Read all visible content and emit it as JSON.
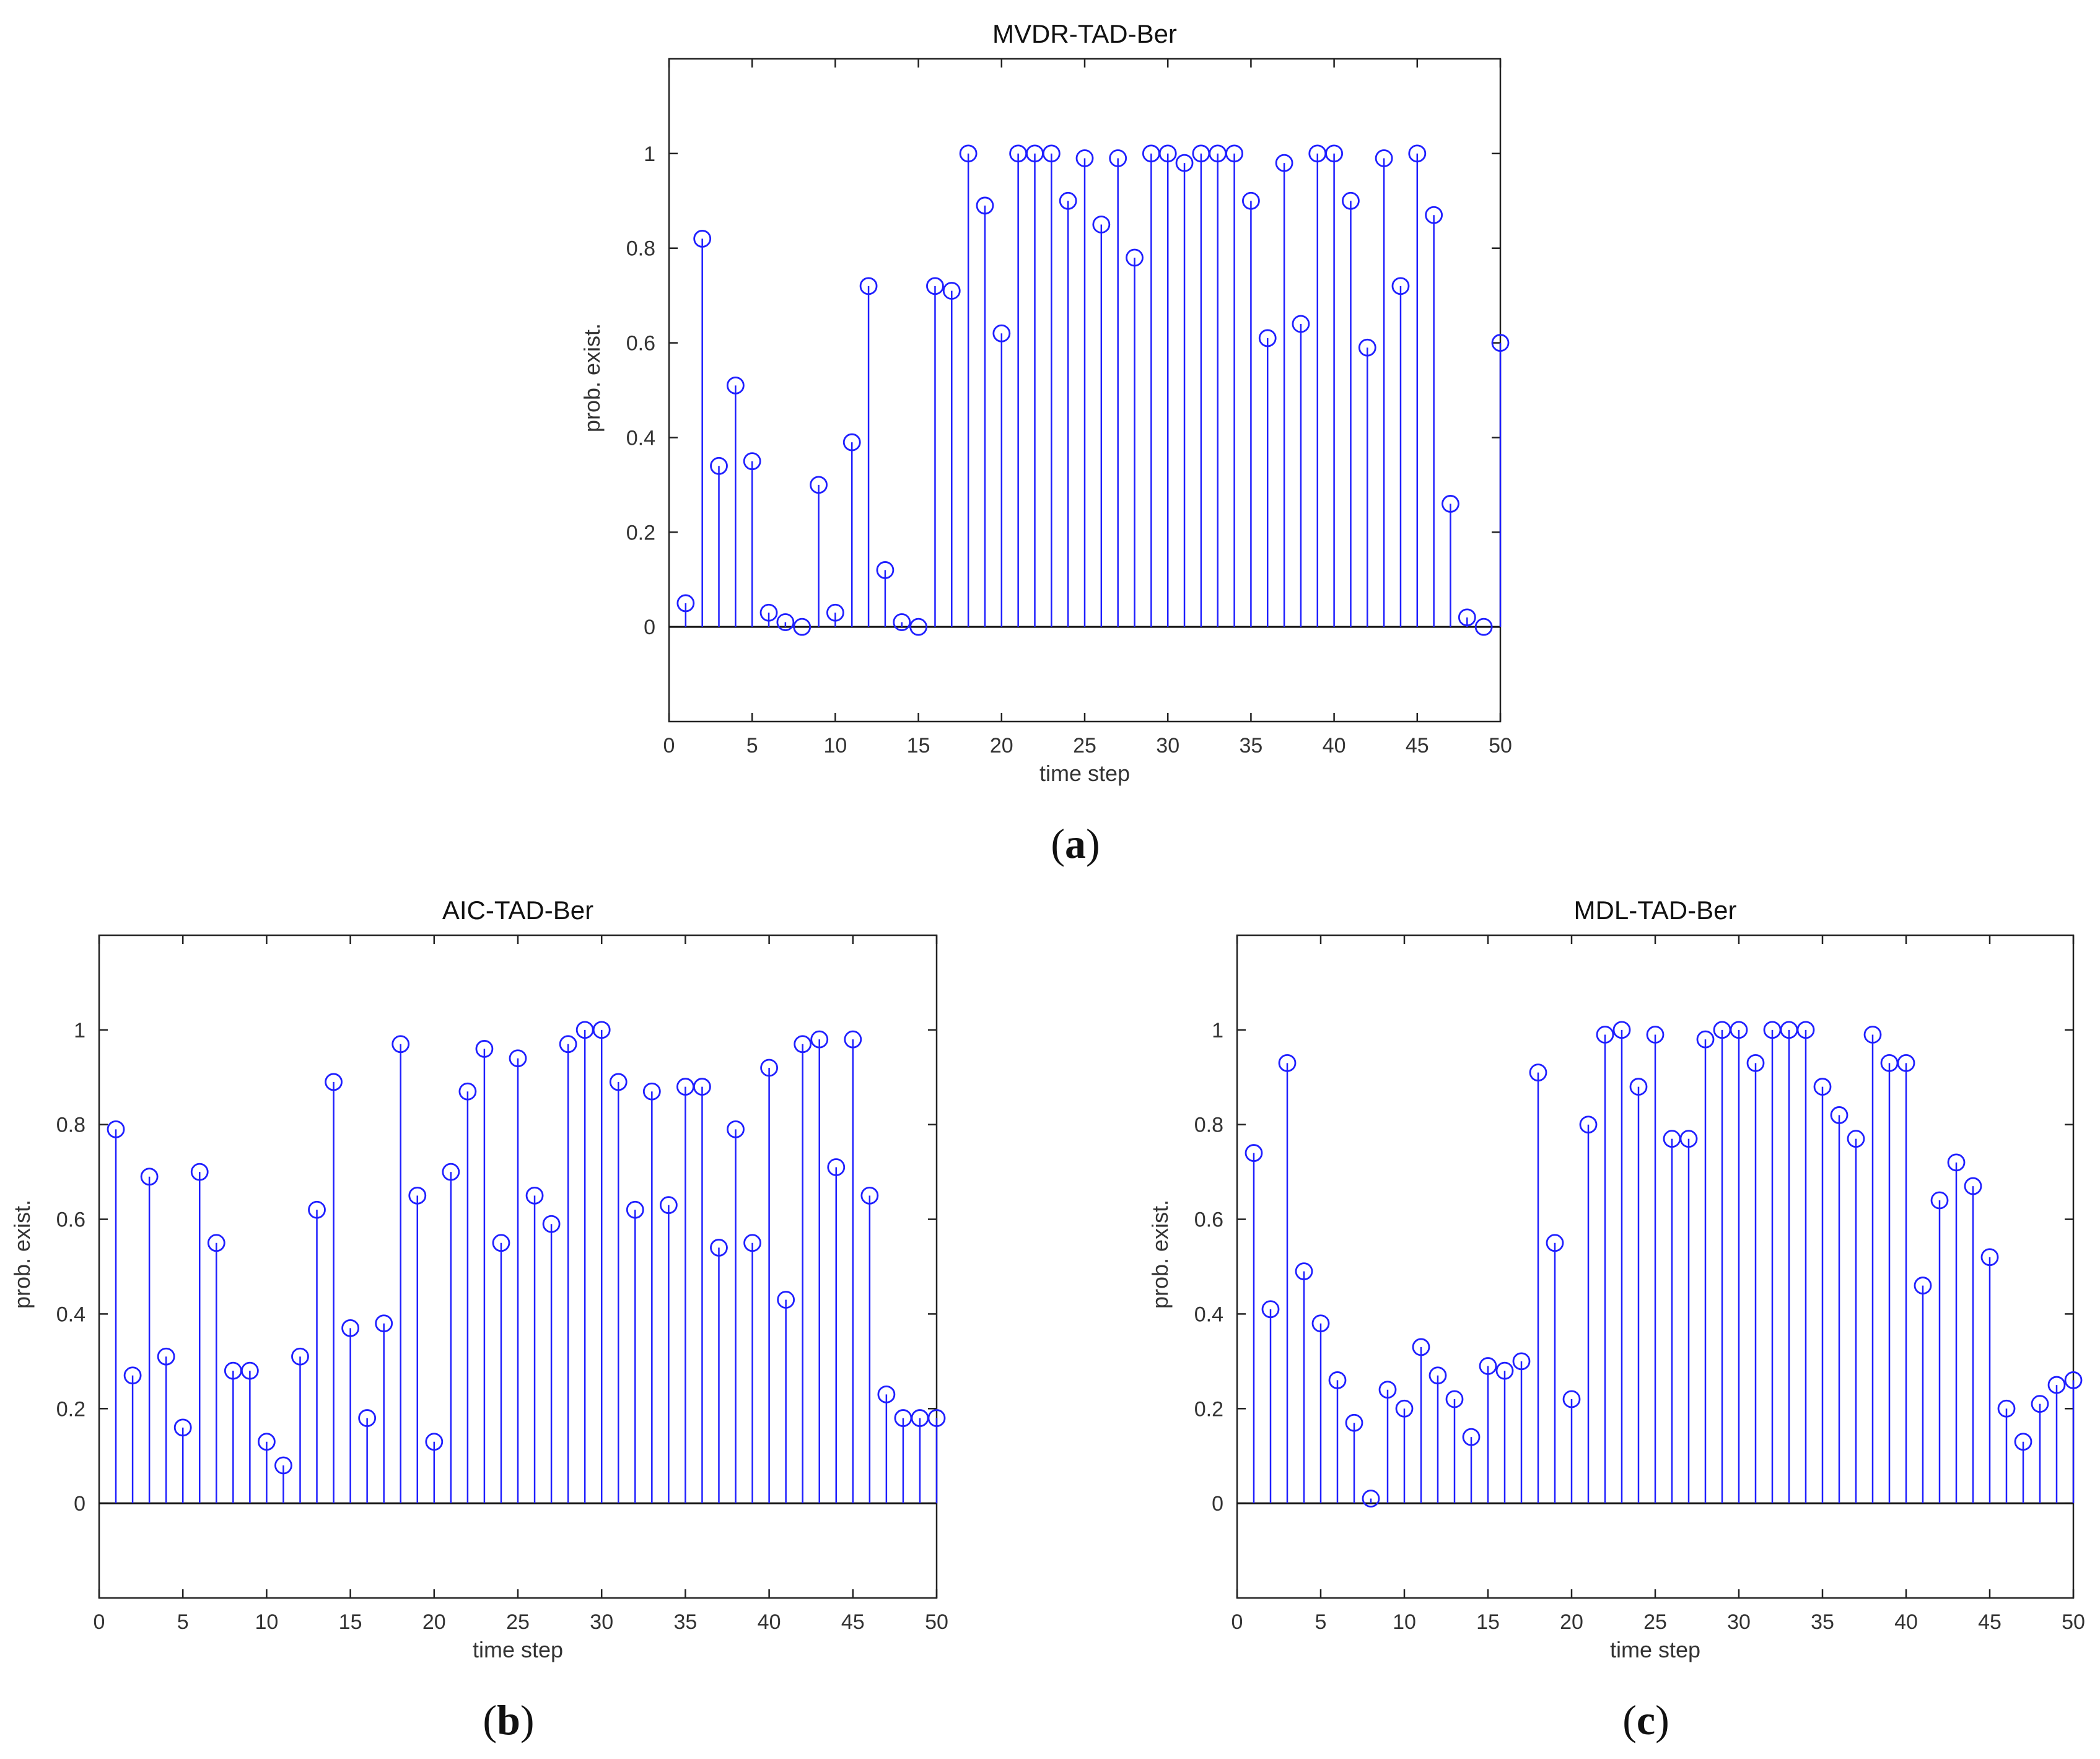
{
  "chart_data": [
    {
      "type": "stem",
      "title": "MVDR-TAD-Ber",
      "xlabel": "time step",
      "ylabel": "prob. exist.",
      "caption_letter": "a",
      "xlim": [
        0,
        50
      ],
      "ylim": [
        -0.2,
        1.2
      ],
      "xticks": [
        0,
        5,
        10,
        15,
        20,
        25,
        30,
        35,
        40,
        45,
        50
      ],
      "yticks": [
        0,
        0.2,
        0.4,
        0.6,
        0.8,
        1
      ],
      "x": [
        1,
        2,
        3,
        4,
        5,
        6,
        7,
        8,
        9,
        10,
        11,
        12,
        13,
        14,
        15,
        16,
        17,
        18,
        19,
        20,
        21,
        22,
        23,
        24,
        25,
        26,
        27,
        28,
        29,
        30,
        31,
        32,
        33,
        34,
        35,
        36,
        37,
        38,
        39,
        40,
        41,
        42,
        43,
        44,
        45,
        46,
        47,
        48,
        49,
        50
      ],
      "values": [
        0.05,
        0.82,
        0.34,
        0.51,
        0.35,
        0.03,
        0.01,
        0.0,
        0.3,
        0.03,
        0.39,
        0.72,
        0.12,
        0.01,
        0.0,
        0.72,
        0.71,
        1.0,
        0.89,
        0.62,
        1.0,
        1.0,
        1.0,
        0.9,
        0.99,
        0.85,
        0.99,
        0.78,
        1.0,
        1.0,
        0.98,
        1.0,
        1.0,
        1.0,
        0.9,
        0.61,
        0.98,
        0.64,
        1.0,
        1.0,
        0.9,
        0.59,
        0.99,
        0.72,
        1.0,
        0.87,
        0.26,
        0.02,
        0.0,
        0.6
      ]
    },
    {
      "type": "stem",
      "title": "AIC-TAD-Ber",
      "xlabel": "time step",
      "ylabel": "prob. exist.",
      "caption_letter": "b",
      "xlim": [
        0,
        50
      ],
      "ylim": [
        -0.2,
        1.2
      ],
      "xticks": [
        0,
        5,
        10,
        15,
        20,
        25,
        30,
        35,
        40,
        45,
        50
      ],
      "yticks": [
        0,
        0.2,
        0.4,
        0.6,
        0.8,
        1
      ],
      "x": [
        1,
        2,
        3,
        4,
        5,
        6,
        7,
        8,
        9,
        10,
        11,
        12,
        13,
        14,
        15,
        16,
        17,
        18,
        19,
        20,
        21,
        22,
        23,
        24,
        25,
        26,
        27,
        28,
        29,
        30,
        31,
        32,
        33,
        34,
        35,
        36,
        37,
        38,
        39,
        40,
        41,
        42,
        43,
        44,
        45,
        46,
        47,
        48,
        49,
        50
      ],
      "values": [
        0.79,
        0.27,
        0.69,
        0.31,
        0.16,
        0.7,
        0.55,
        0.28,
        0.28,
        0.13,
        0.08,
        0.31,
        0.62,
        0.89,
        0.37,
        0.18,
        0.38,
        0.97,
        0.65,
        0.13,
        0.7,
        0.87,
        0.96,
        0.55,
        0.94,
        0.65,
        0.59,
        0.97,
        1.0,
        1.0,
        0.89,
        0.62,
        0.87,
        0.63,
        0.88,
        0.88,
        0.54,
        0.79,
        0.55,
        0.92,
        0.43,
        0.97,
        0.98,
        0.71,
        0.98,
        0.65,
        0.23,
        0.18,
        0.18,
        0.18
      ]
    },
    {
      "type": "stem",
      "title": "MDL-TAD-Ber",
      "xlabel": "time step",
      "ylabel": "prob. exist.",
      "caption_letter": "c",
      "xlim": [
        0,
        50
      ],
      "ylim": [
        -0.2,
        1.2
      ],
      "xticks": [
        0,
        5,
        10,
        15,
        20,
        25,
        30,
        35,
        40,
        45,
        50
      ],
      "yticks": [
        0,
        0.2,
        0.4,
        0.6,
        0.8,
        1
      ],
      "x": [
        1,
        2,
        3,
        4,
        5,
        6,
        7,
        8,
        9,
        10,
        11,
        12,
        13,
        14,
        15,
        16,
        17,
        18,
        19,
        20,
        21,
        22,
        23,
        24,
        25,
        26,
        27,
        28,
        29,
        30,
        31,
        32,
        33,
        34,
        35,
        36,
        37,
        38,
        39,
        40,
        41,
        42,
        43,
        44,
        45,
        46,
        47,
        48,
        49,
        50
      ],
      "values": [
        0.74,
        0.41,
        0.93,
        0.49,
        0.38,
        0.26,
        0.17,
        0.01,
        0.24,
        0.2,
        0.33,
        0.27,
        0.22,
        0.14,
        0.29,
        0.28,
        0.3,
        0.91,
        0.55,
        0.22,
        0.8,
        0.99,
        1.0,
        0.88,
        0.99,
        0.77,
        0.77,
        0.98,
        1.0,
        1.0,
        0.93,
        1.0,
        1.0,
        1.0,
        0.88,
        0.82,
        0.77,
        0.99,
        0.93,
        0.93,
        0.46,
        0.64,
        0.72,
        0.67,
        0.52,
        0.2,
        0.13,
        0.21,
        0.25,
        0.26
      ]
    }
  ]
}
